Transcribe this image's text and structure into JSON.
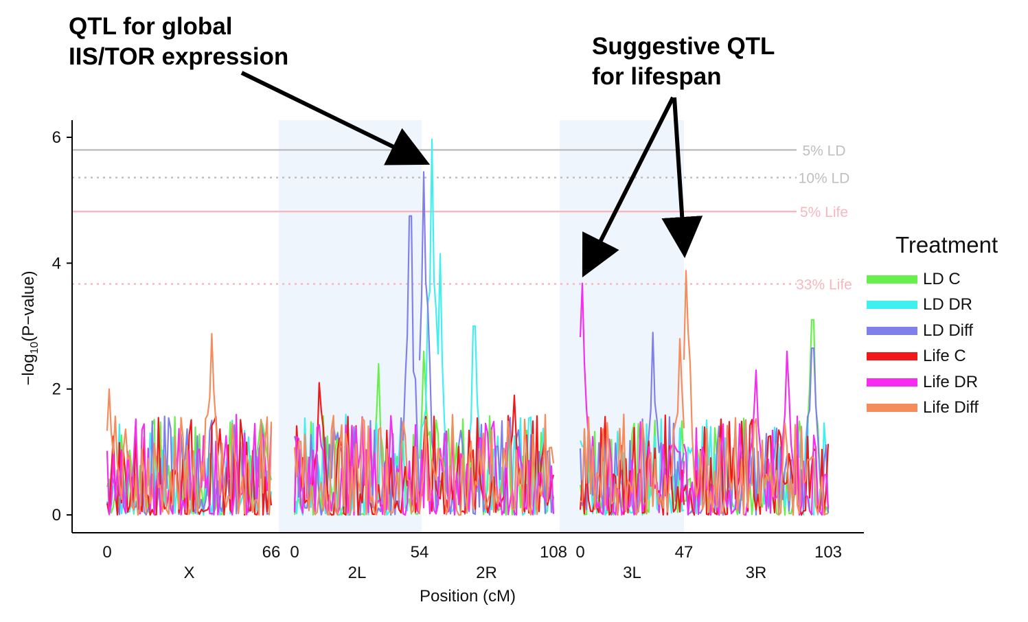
{
  "annotations": {
    "left": "QTL for global\nIIS/TOR expression",
    "right": "Suggestive QTL\nfor lifespan"
  },
  "chart_data": {
    "type": "line",
    "xlabel": "Position (cM)",
    "ylabel": "−log10(P−value)",
    "ylim": [
      0,
      6.2
    ],
    "yticks": [
      0,
      2,
      4,
      6
    ],
    "chromosomes": [
      {
        "name": "X",
        "start": 0,
        "end": 66,
        "ticks": [
          "0",
          "66"
        ],
        "shaded": false
      },
      {
        "name": "2L",
        "start": 0,
        "end": 54,
        "ticks": [
          "0",
          "54"
        ],
        "shaded": true
      },
      {
        "name": "2R",
        "start": 54,
        "end": 108,
        "ticks": [
          "108"
        ],
        "shaded": false
      },
      {
        "name": "3L",
        "start": 0,
        "end": 47,
        "ticks": [
          "0",
          "47"
        ],
        "shaded": true
      },
      {
        "name": "3R",
        "start": 47,
        "end": 103,
        "ticks": [
          "103"
        ],
        "shaded": false
      }
    ],
    "thresholds": [
      {
        "label": "5% LD",
        "value": 5.8,
        "color": "#bfbfbf",
        "style": "solid"
      },
      {
        "label": "10% LD",
        "value": 5.36,
        "color": "#bfbfbf",
        "style": "dotted"
      },
      {
        "label": "5% Life",
        "value": 4.82,
        "color": "#f7b7bf",
        "style": "solid"
      },
      {
        "label": "33% Life",
        "value": 3.67,
        "color": "#f7b7bf",
        "style": "dotted"
      }
    ],
    "legend_title": "Treatment",
    "series": [
      {
        "name": "LD C",
        "color": "#66f04a",
        "peaks": [
          {
            "chrom": "2R",
            "pos": 56,
            "value": 2.6
          },
          {
            "chrom": "3R",
            "pos": 97,
            "value": 3.1
          },
          {
            "chrom": "2L",
            "pos": 36,
            "value": 2.4
          }
        ]
      },
      {
        "name": "LD DR",
        "color": "#40f0ee",
        "peaks": [
          {
            "chrom": "2R",
            "pos": 59,
            "value": 5.97
          },
          {
            "chrom": "2R",
            "pos": 62,
            "value": 4.15
          },
          {
            "chrom": "2R",
            "pos": 76,
            "value": 3.0
          }
        ]
      },
      {
        "name": "LD Diff",
        "color": "#8080ea",
        "peaks": [
          {
            "chrom": "2L",
            "pos": 50,
            "value": 4.75
          },
          {
            "chrom": "2R",
            "pos": 56,
            "value": 5.45
          },
          {
            "chrom": "3L",
            "pos": 33,
            "value": 2.9
          },
          {
            "chrom": "3R",
            "pos": 97,
            "value": 2.65
          }
        ]
      },
      {
        "name": "Life C",
        "color": "#f01818",
        "peaks": [
          {
            "chrom": "2L",
            "pos": 11,
            "value": 2.1
          },
          {
            "chrom": "2R",
            "pos": 92,
            "value": 1.9
          }
        ]
      },
      {
        "name": "Life DR",
        "color": "#f62cf0",
        "peaks": [
          {
            "chrom": "3L",
            "pos": 1,
            "value": 3.68
          },
          {
            "chrom": "3R",
            "pos": 87,
            "value": 2.6
          },
          {
            "chrom": "3R",
            "pos": 75,
            "value": 2.3
          }
        ]
      },
      {
        "name": "Life Diff",
        "color": "#f48c5c",
        "peaks": [
          {
            "chrom": "X",
            "pos": 42,
            "value": 2.88
          },
          {
            "chrom": "3R",
            "pos": 48,
            "value": 3.88
          },
          {
            "chrom": "3L",
            "pos": 45,
            "value": 2.8
          },
          {
            "chrom": "X",
            "pos": 1,
            "value": 2.0
          }
        ]
      }
    ]
  }
}
